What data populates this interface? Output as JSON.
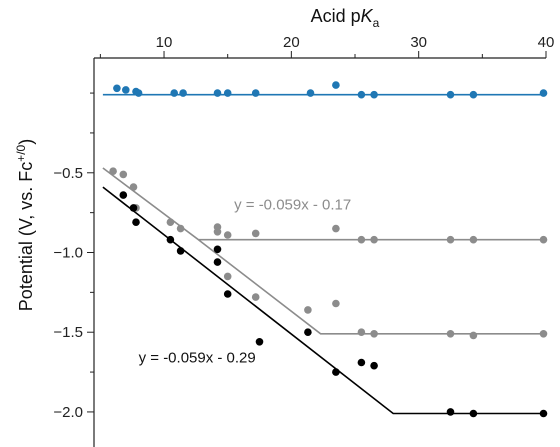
{
  "chart_data": {
    "type": "scatter",
    "title": "",
    "xlabel": {
      "prefix": "Acid p",
      "italic": "K",
      "subscript": "a"
    },
    "ylabel": {
      "prefix": "Potential (V, vs. Fc",
      "superscript": "+/0",
      "suffix": ")"
    },
    "xlim": [
      4.5,
      40
    ],
    "ylim": [
      -2.22,
      0.22
    ],
    "x_ticks": [
      10,
      20,
      30,
      40
    ],
    "y_ticks": [
      -0.5,
      -1.0,
      -1.5,
      -2.0
    ],
    "y_tick_labels": [
      "−0.5",
      "−1.0",
      "−1.5",
      "−2.0"
    ],
    "x_axis_position": "top",
    "grid": false,
    "legend": "none",
    "series": [
      {
        "color": "#1f77b4",
        "points": [
          [
            6.3,
            0.03
          ],
          [
            7.0,
            0.02
          ],
          [
            7.8,
            0.01
          ],
          [
            8.0,
            0.0
          ],
          [
            10.8,
            0.0
          ],
          [
            11.5,
            0.0
          ],
          [
            14.2,
            0.0
          ],
          [
            15.0,
            0.0
          ],
          [
            17.2,
            0.0
          ],
          [
            21.5,
            0.0
          ],
          [
            23.5,
            0.05
          ],
          [
            25.5,
            -0.01
          ],
          [
            26.5,
            -0.01
          ],
          [
            32.5,
            -0.01
          ],
          [
            34.3,
            -0.01
          ],
          [
            39.8,
            0.0
          ]
        ],
        "fit": [
          [
            5.2,
            -0.01
          ],
          [
            40,
            -0.01
          ]
        ]
      },
      {
        "color": "#8c8c8c",
        "points": [
          [
            6.0,
            -0.49
          ],
          [
            6.8,
            -0.51
          ],
          [
            7.6,
            -0.59
          ],
          [
            7.8,
            -0.72
          ],
          [
            10.5,
            -0.81
          ],
          [
            11.3,
            -0.85
          ],
          [
            14.2,
            -0.84
          ],
          [
            14.2,
            -0.87
          ],
          [
            15.0,
            -0.89
          ],
          [
            17.2,
            -0.88
          ],
          [
            15.0,
            -1.15
          ],
          [
            17.2,
            -1.28
          ],
          [
            21.3,
            -1.36
          ],
          [
            23.5,
            -0.85
          ],
          [
            23.5,
            -1.32
          ],
          [
            25.5,
            -0.92
          ],
          [
            26.5,
            -0.92
          ],
          [
            25.5,
            -1.5
          ],
          [
            26.5,
            -1.51
          ],
          [
            32.5,
            -0.92
          ],
          [
            34.3,
            -0.92
          ],
          [
            32.5,
            -1.51
          ],
          [
            34.3,
            -1.52
          ],
          [
            39.8,
            -0.92
          ],
          [
            39.8,
            -1.51
          ]
        ],
        "fits": [
          [
            [
              5.2,
              -0.47
            ],
            [
              12.7,
              -0.92
            ],
            [
              40,
              -0.92
            ]
          ],
          [
            [
              12.7,
              -0.92
            ],
            [
              22.3,
              -1.51
            ],
            [
              40,
              -1.51
            ]
          ]
        ]
      },
      {
        "color": "#000000",
        "points": [
          [
            6.8,
            -0.64
          ],
          [
            7.6,
            -0.72
          ],
          [
            7.8,
            -0.81
          ],
          [
            10.5,
            -0.92
          ],
          [
            11.3,
            -0.99
          ],
          [
            14.2,
            -0.98
          ],
          [
            14.2,
            -1.06
          ],
          [
            15.0,
            -1.26
          ],
          [
            17.5,
            -1.56
          ],
          [
            21.3,
            -1.5
          ],
          [
            23.5,
            -1.75
          ],
          [
            25.5,
            -1.69
          ],
          [
            26.5,
            -1.71
          ],
          [
            32.5,
            -2.0
          ],
          [
            34.3,
            -2.01
          ],
          [
            39.8,
            -2.01
          ]
        ],
        "fit": [
          [
            5.2,
            -0.59
          ],
          [
            28.0,
            -2.01
          ],
          [
            40,
            -2.01
          ]
        ]
      }
    ],
    "annotations": [
      {
        "text": "y = -0.059x - 0.17",
        "color": "#8c8c8c",
        "at": [
          15.5,
          -0.73
        ]
      },
      {
        "text": "y = -0.059x - 0.29",
        "color": "#111111",
        "at": [
          8.0,
          -1.69
        ]
      }
    ]
  }
}
